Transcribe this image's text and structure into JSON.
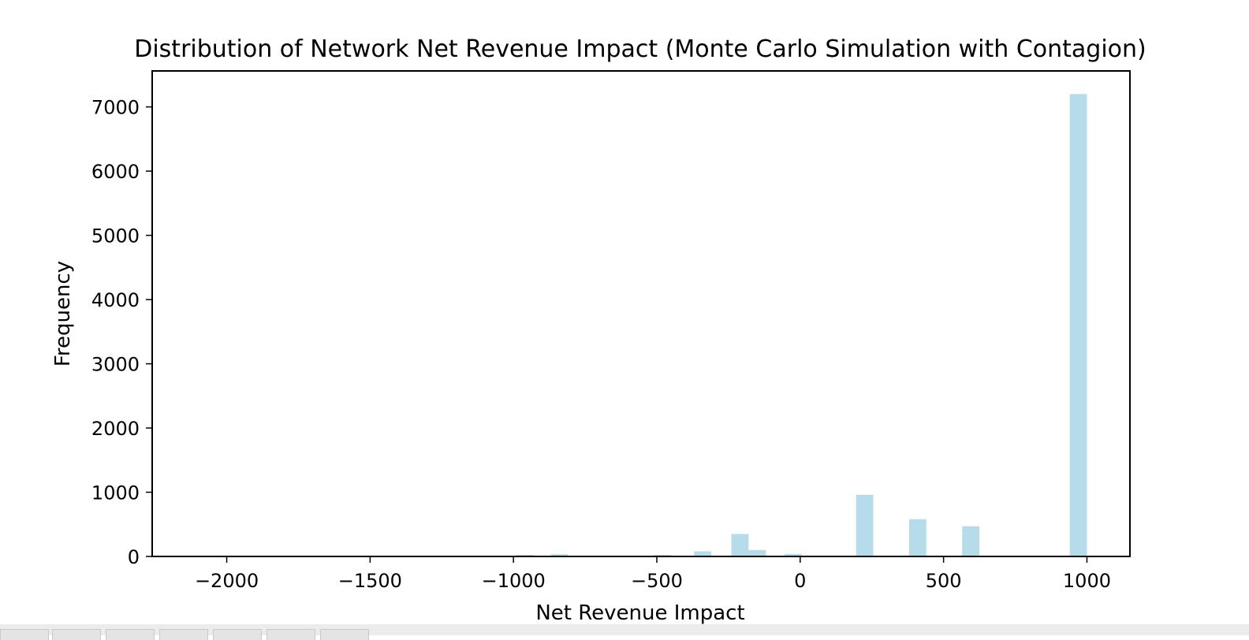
{
  "chart_data": {
    "type": "bar",
    "title": "Distribution of Network Net Revenue Impact (Monte Carlo Simulation with Contagion)",
    "xlabel": "Net Revenue Impact",
    "ylabel": "Frequency",
    "xlim": [
      -2260,
      1150
    ],
    "ylim": [
      0,
      7560
    ],
    "x_ticks": [
      -2000,
      -1500,
      -1000,
      -500,
      0,
      500,
      1000
    ],
    "x_tick_labels": [
      "−2000",
      "−1500",
      "−1000",
      "−500",
      "0",
      "500",
      "1000"
    ],
    "y_ticks": [
      0,
      1000,
      2000,
      3000,
      4000,
      5000,
      6000,
      7000
    ],
    "y_tick_labels": [
      "0",
      "1000",
      "2000",
      "3000",
      "4000",
      "5000",
      "6000",
      "7000"
    ],
    "bar_color": "#add8e6",
    "bars": [
      {
        "x0": -990,
        "x1": -930,
        "value": 25
      },
      {
        "x0": -870,
        "x1": -810,
        "value": 35
      },
      {
        "x0": -570,
        "x1": -510,
        "value": 10
      },
      {
        "x0": -510,
        "x1": -450,
        "value": 25
      },
      {
        "x0": -370,
        "x1": -310,
        "value": 80
      },
      {
        "x0": -240,
        "x1": -180,
        "value": 350
      },
      {
        "x0": -180,
        "x1": -120,
        "value": 100
      },
      {
        "x0": -55,
        "x1": 5,
        "value": 40
      },
      {
        "x0": 195,
        "x1": 255,
        "value": 960
      },
      {
        "x0": 380,
        "x1": 440,
        "value": 580
      },
      {
        "x0": 565,
        "x1": 625,
        "value": 470
      },
      {
        "x0": 940,
        "x1": 1000,
        "value": 7200
      }
    ],
    "grid": false,
    "legend": "none"
  }
}
